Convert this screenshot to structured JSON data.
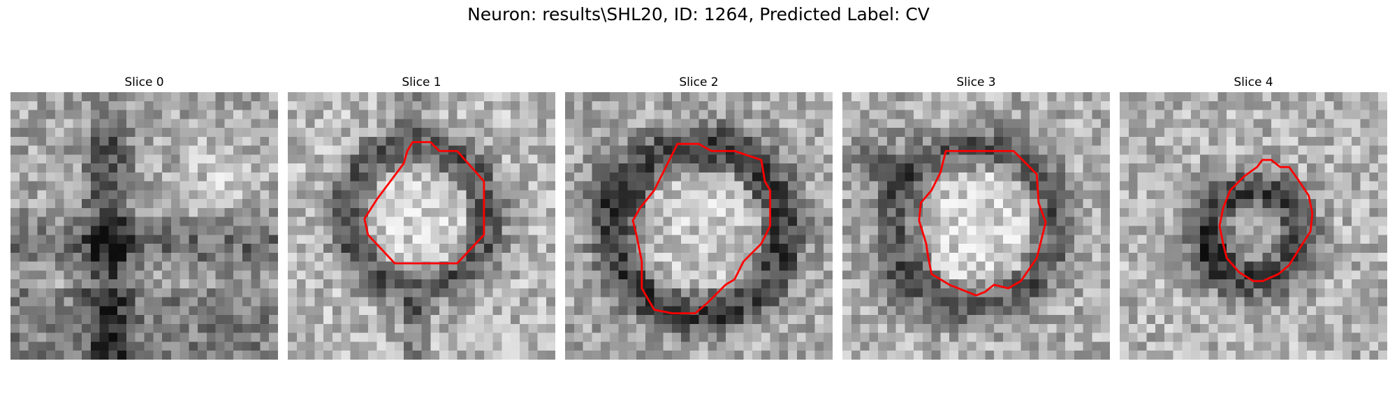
{
  "figure": {
    "title": "Neuron: results\\SHL20, ID: 1264, Predicted Label: CV",
    "outline_color": "#ff0000",
    "colormap": "gray"
  },
  "panels": [
    {
      "title": "Slice 0",
      "has_outline": false,
      "style": "dark-cross",
      "seed": 11
    },
    {
      "title": "Slice 1",
      "has_outline": true,
      "style": "ring-bright",
      "seed": 23
    },
    {
      "title": "Slice 2",
      "has_outline": true,
      "style": "ring-dark",
      "seed": 37
    },
    {
      "title": "Slice 3",
      "has_outline": true,
      "style": "ring-mid",
      "seed": 41
    },
    {
      "title": "Slice 4",
      "has_outline": true,
      "style": "ring-small",
      "seed": 53
    }
  ]
}
